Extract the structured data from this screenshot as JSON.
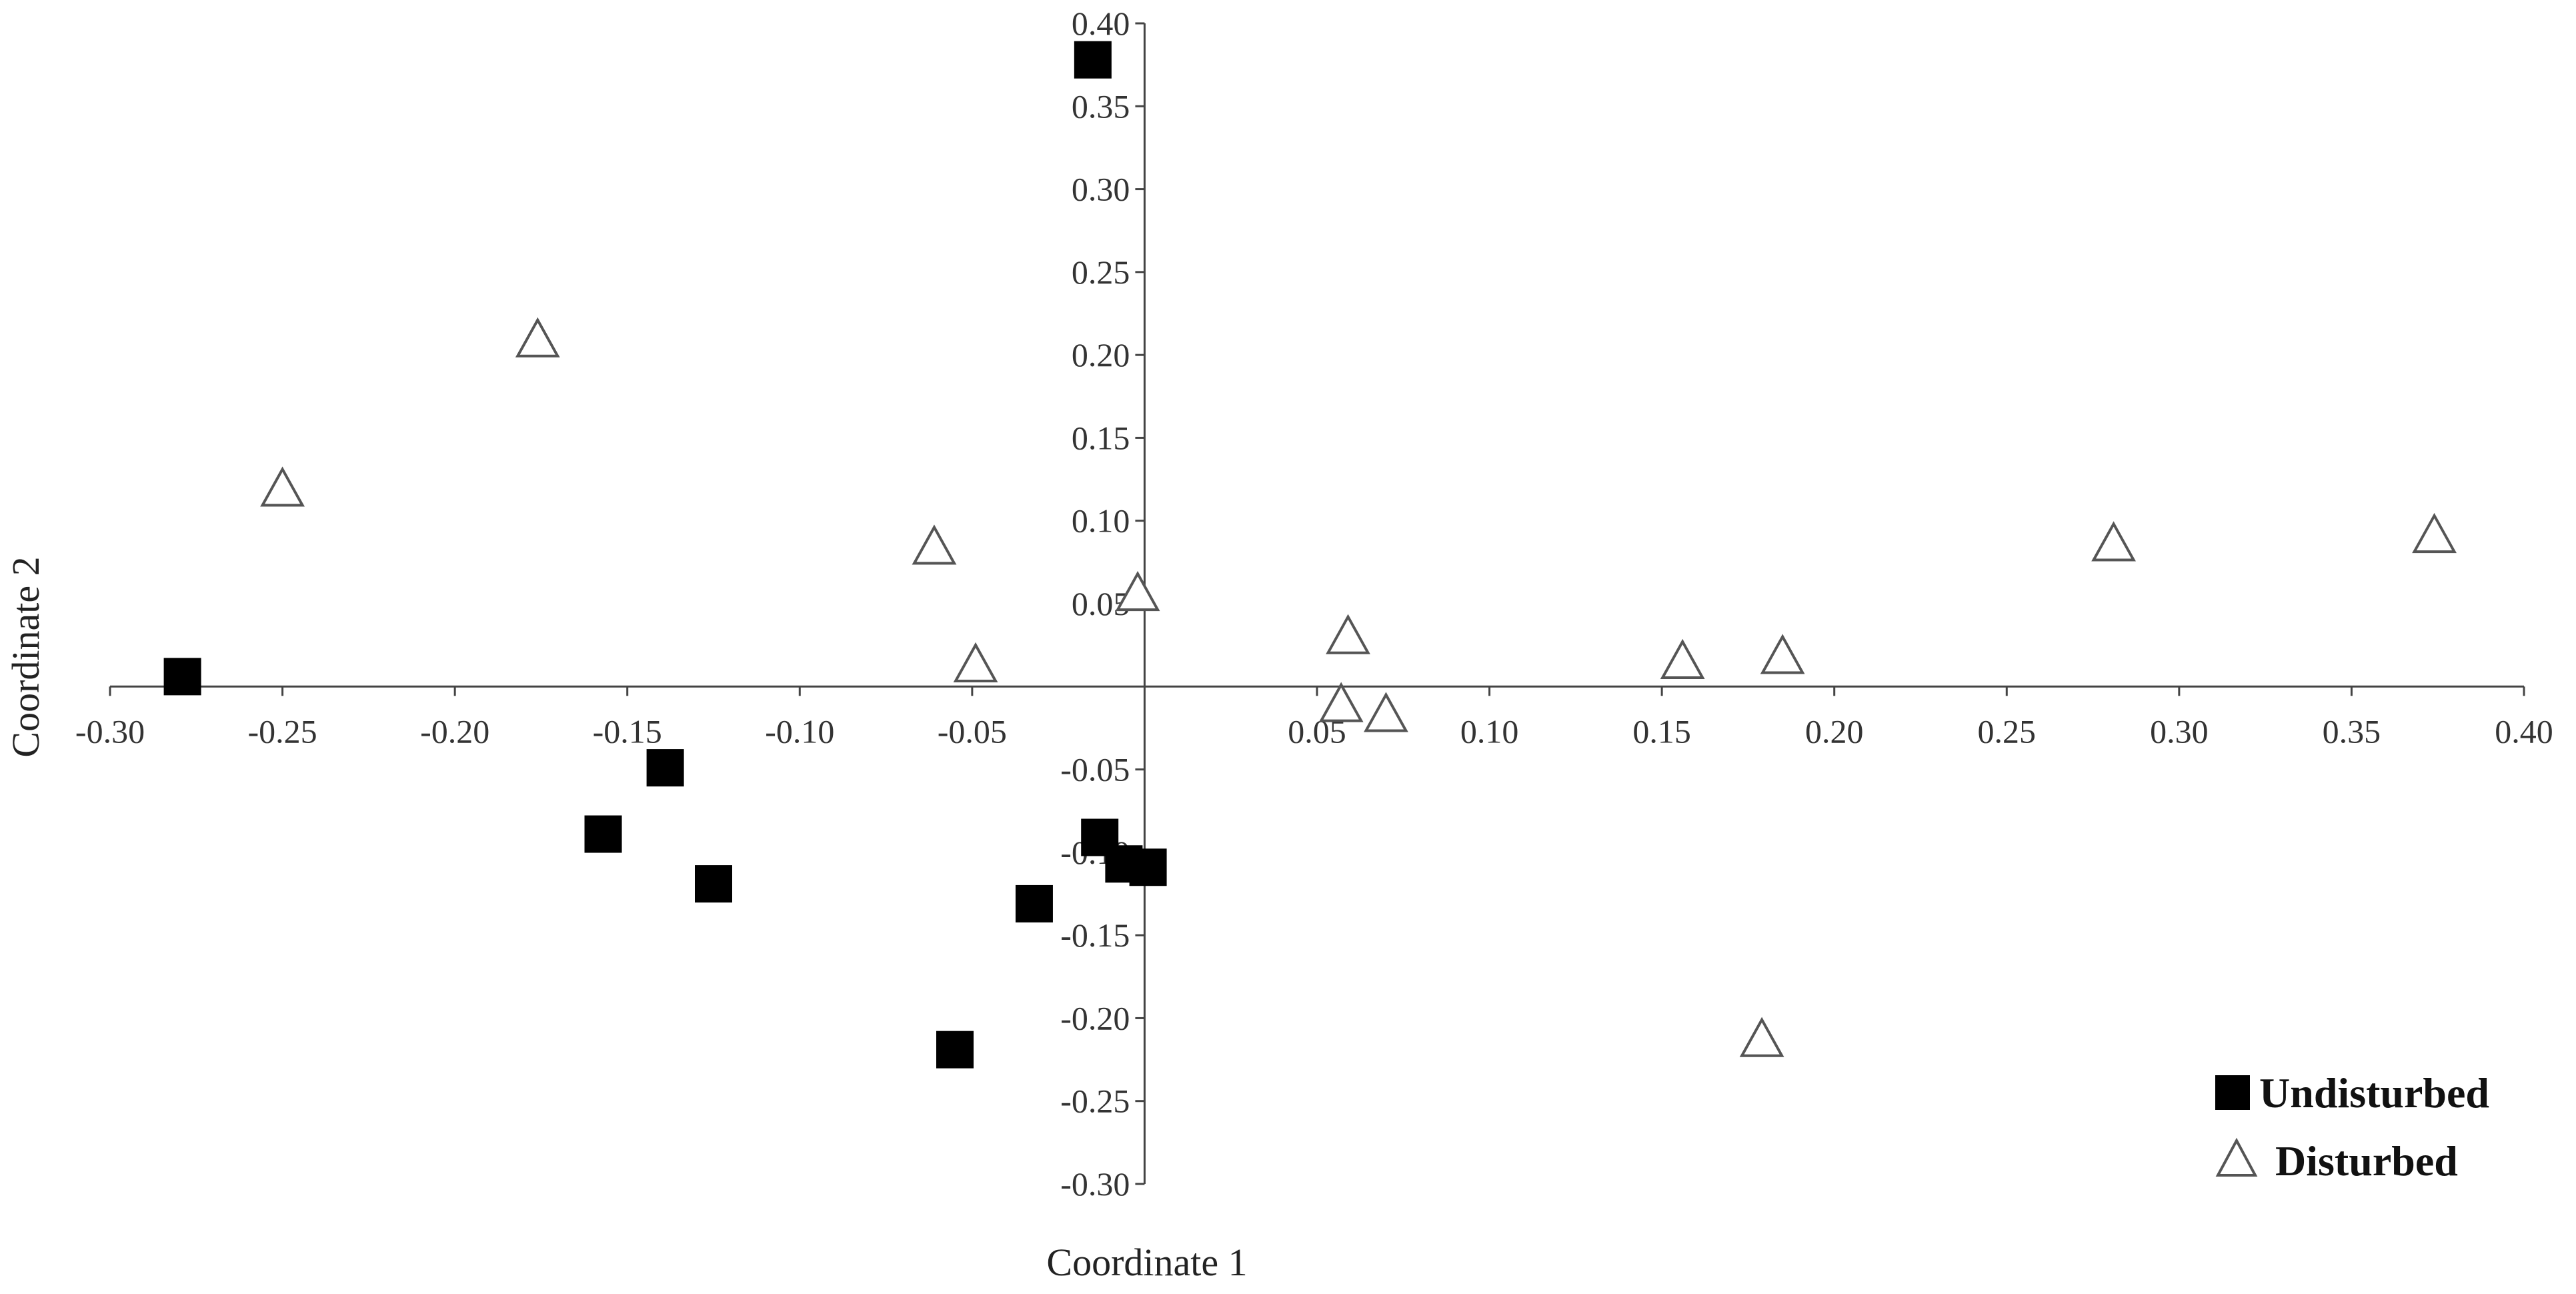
{
  "chart_data": {
    "type": "scatter",
    "xlabel": "Coordinate 1",
    "ylabel": "Coordinate 2",
    "xlim": [
      -0.3,
      0.4
    ],
    "ylim": [
      -0.3,
      0.4
    ],
    "x_ticks": [
      "-0.30",
      "-0.25",
      "-0.20",
      "-0.15",
      "-0.10",
      "-0.05",
      "0.05",
      "0.10",
      "0.15",
      "0.20",
      "0.25",
      "0.30",
      "0.35",
      "0.40"
    ],
    "y_ticks": [
      "0.40",
      "0.35",
      "0.30",
      "0.25",
      "0.20",
      "0.15",
      "0.10",
      "0.05",
      "-0.05",
      "-0.10",
      "-0.15",
      "-0.20",
      "-0.25",
      "-0.30"
    ],
    "grid": false,
    "legend_position": "bottom-right",
    "series": [
      {
        "name": "Undisturbed",
        "marker": "filled-square",
        "color": "#000000",
        "points": [
          {
            "x": -0.015,
            "y": 0.378
          },
          {
            "x": -0.279,
            "y": 0.006
          },
          {
            "x": -0.139,
            "y": -0.049
          },
          {
            "x": -0.157,
            "y": -0.089
          },
          {
            "x": -0.125,
            "y": -0.119
          },
          {
            "x": -0.013,
            "y": -0.091
          },
          {
            "x": -0.006,
            "y": -0.107
          },
          {
            "x": 0.001,
            "y": -0.109
          },
          {
            "x": -0.032,
            "y": -0.131
          },
          {
            "x": -0.055,
            "y": -0.219
          }
        ]
      },
      {
        "name": "Disturbed",
        "marker": "open-triangle",
        "color": "#555555",
        "points": [
          {
            "x": -0.176,
            "y": 0.209
          },
          {
            "x": -0.25,
            "y": 0.119
          },
          {
            "x": -0.061,
            "y": 0.084
          },
          {
            "x": -0.002,
            "y": 0.056
          },
          {
            "x": -0.049,
            "y": 0.013
          },
          {
            "x": 0.059,
            "y": 0.03
          },
          {
            "x": 0.057,
            "y": -0.011
          },
          {
            "x": 0.07,
            "y": -0.017
          },
          {
            "x": 0.156,
            "y": 0.015
          },
          {
            "x": 0.185,
            "y": 0.018
          },
          {
            "x": 0.281,
            "y": 0.086
          },
          {
            "x": 0.374,
            "y": 0.091
          },
          {
            "x": 0.179,
            "y": -0.213
          }
        ]
      }
    ]
  }
}
